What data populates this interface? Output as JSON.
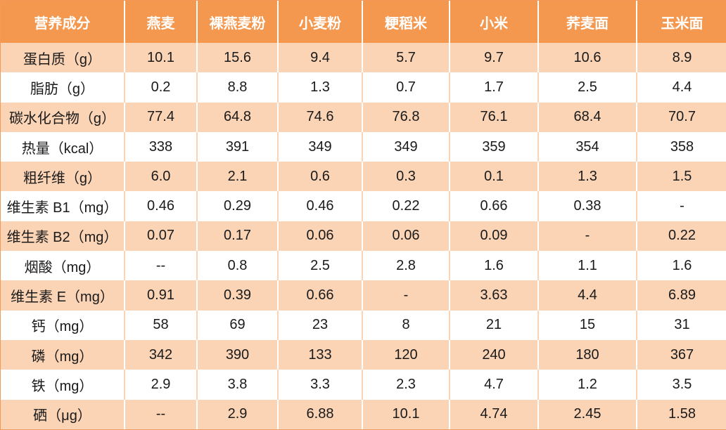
{
  "header": {
    "col0": "营养成分",
    "col1": "燕麦",
    "col2": "裸燕麦粉",
    "col3": "小麦粉",
    "col4": "粳稻米",
    "col5": "小米",
    "col6": "荞麦面",
    "col7": "玉米面"
  },
  "rows": [
    {
      "name": "蛋白质（g）",
      "v1": "10.1",
      "v2": "15.6",
      "v3": "9.4",
      "v4": "5.7",
      "v5": "9.7",
      "v6": "10.6",
      "v7": "8.9"
    },
    {
      "name": "脂肪（g）",
      "v1": "0.2",
      "v2": "8.8",
      "v3": "1.3",
      "v4": "0.7",
      "v5": "1.7",
      "v6": "2.5",
      "v7": "4.4"
    },
    {
      "name": "碳水化合物（g）",
      "v1": "77.4",
      "v2": "64.8",
      "v3": "74.6",
      "v4": "76.8",
      "v5": "76.1",
      "v6": "68.4",
      "v7": "70.7"
    },
    {
      "name": "热量（kcal）",
      "v1": "338",
      "v2": "391",
      "v3": "349",
      "v4": "349",
      "v5": "359",
      "v6": "354",
      "v7": "358"
    },
    {
      "name": "粗纤维（g）",
      "v1": "6.0",
      "v2": "2.1",
      "v3": "0.6",
      "v4": "0.3",
      "v5": "0.1",
      "v6": "1.3",
      "v7": "1.5"
    },
    {
      "name": "维生素 B1（mg）",
      "v1": "0.46",
      "v2": "0.29",
      "v3": "0.46",
      "v4": "0.22",
      "v5": "0.66",
      "v6": "0.38",
      "v7": "-"
    },
    {
      "name": "维生素 B2（mg）",
      "v1": "0.07",
      "v2": "0.17",
      "v3": "0.06",
      "v4": "0.06",
      "v5": "0.09",
      "v6": "-",
      "v7": "0.22"
    },
    {
      "name": "烟酸（mg）",
      "v1": "--",
      "v2": "0.8",
      "v3": "2.5",
      "v4": "2.8",
      "v5": "1.6",
      "v6": "1.1",
      "v7": "1.6"
    },
    {
      "name": "维生素 E（mg）",
      "v1": "0.91",
      "v2": "0.39",
      "v3": "0.66",
      "v4": "-",
      "v5": "3.63",
      "v6": "4.4",
      "v7": "6.89"
    },
    {
      "name": "钙（mg）",
      "v1": "58",
      "v2": "69",
      "v3": "23",
      "v4": "8",
      "v5": "21",
      "v6": "15",
      "v7": "31"
    },
    {
      "name": "磷（mg）",
      "v1": "342",
      "v2": "390",
      "v3": "133",
      "v4": "120",
      "v5": "240",
      "v6": "180",
      "v7": "367"
    },
    {
      "name": "铁（mg）",
      "v1": "2.9",
      "v2": "3.8",
      "v3": "3.3",
      "v4": "2.3",
      "v5": "4.7",
      "v6": "1.2",
      "v7": "3.5"
    },
    {
      "name": "硒（μg）",
      "v1": "--",
      "v2": "2.9",
      "v3": "6.88",
      "v4": "10.1",
      "v5": "4.74",
      "v6": "2.45",
      "v7": "1.58"
    }
  ],
  "colors": {
    "header_bg": "#f5984f",
    "stripe_bg": "#fbd4b6",
    "plain_bg": "#ffffff"
  }
}
